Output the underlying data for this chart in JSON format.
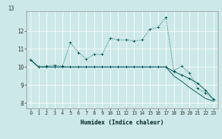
{
  "xlabel": "Humidex (Indice chaleur)",
  "bg_color": "#cce8e8",
  "grid_color": "#ffffff",
  "line_color": "#005555",
  "x_values": [
    0,
    1,
    2,
    3,
    4,
    5,
    6,
    7,
    8,
    9,
    10,
    11,
    12,
    13,
    14,
    15,
    16,
    17,
    18,
    19,
    20,
    21,
    22,
    23
  ],
  "series1": [
    10.4,
    10.0,
    10.05,
    10.1,
    10.05,
    11.35,
    10.8,
    10.45,
    10.7,
    10.7,
    11.6,
    11.5,
    11.5,
    11.45,
    11.5,
    12.1,
    12.2,
    12.75,
    9.8,
    10.05,
    9.65,
    8.8,
    8.55,
    8.2
  ],
  "series2": [
    10.4,
    10.0,
    10.0,
    10.0,
    10.0,
    10.0,
    10.0,
    10.0,
    10.0,
    10.0,
    10.0,
    10.0,
    10.0,
    10.0,
    10.0,
    10.0,
    10.0,
    10.0,
    9.75,
    9.55,
    9.35,
    9.1,
    8.7,
    8.2
  ],
  "series3": [
    10.4,
    10.0,
    10.0,
    10.0,
    10.0,
    10.0,
    10.0,
    10.0,
    10.0,
    10.0,
    10.0,
    10.0,
    10.0,
    10.0,
    10.0,
    10.0,
    10.0,
    10.0,
    9.5,
    9.2,
    8.85,
    8.55,
    8.25,
    8.1
  ],
  "ylim": [
    7.7,
    13.1
  ],
  "xlim": [
    -0.5,
    23.5
  ],
  "yticks": [
    8,
    9,
    10,
    11,
    12
  ],
  "xticks": [
    0,
    1,
    2,
    3,
    4,
    5,
    6,
    7,
    8,
    9,
    10,
    11,
    12,
    13,
    14,
    15,
    16,
    17,
    18,
    19,
    20,
    21,
    22,
    23
  ]
}
